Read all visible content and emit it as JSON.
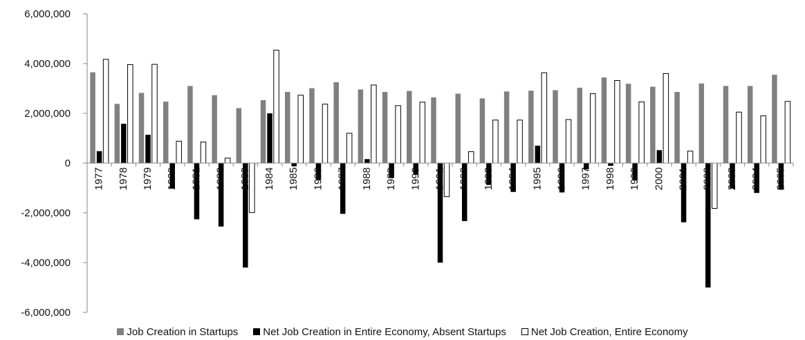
{
  "chart_data": {
    "type": "bar",
    "title": "",
    "xlabel": "",
    "ylabel": "",
    "ylim": [
      -6000000,
      6000000
    ],
    "ytick_step": 2000000,
    "yticks": [
      "-6,000,000",
      "-4,000,000",
      "-2,000,000",
      "0",
      "2,000,000",
      "4,000,000",
      "6,000,000"
    ],
    "grid": false,
    "legend_position": "bottom",
    "categories": [
      "1977",
      "1978",
      "1979",
      "1980",
      "1981",
      "1982",
      "1983",
      "1984",
      "1985",
      "1986",
      "1987",
      "1988",
      "1989",
      "1990",
      "1991",
      "1992",
      "1993",
      "1994",
      "1995",
      "1996",
      "1997",
      "1998",
      "1999",
      "2000",
      "2001",
      "2002",
      "2003",
      "2004",
      "2005"
    ],
    "series": [
      {
        "name": "Job Creation in Startups",
        "color": "#808080",
        "style": "solid",
        "values": [
          3650000,
          2380000,
          2820000,
          2470000,
          3100000,
          2730000,
          2210000,
          2530000,
          2860000,
          3010000,
          3250000,
          2960000,
          2860000,
          2900000,
          2640000,
          2790000,
          2600000,
          2880000,
          2910000,
          2930000,
          3030000,
          3440000,
          3190000,
          3070000,
          2860000,
          3200000,
          3100000,
          3100000,
          3550000
        ]
      },
      {
        "name": "Net Job Creation in Entire Economy, Absent Startups",
        "color": "#000000",
        "style": "solid",
        "values": [
          480000,
          1580000,
          1140000,
          -1030000,
          -2260000,
          -2550000,
          -4200000,
          2000000,
          -130000,
          -680000,
          -2040000,
          160000,
          -600000,
          -470000,
          -4000000,
          -2330000,
          -880000,
          -1160000,
          700000,
          -1180000,
          -250000,
          -110000,
          -700000,
          520000,
          -2380000,
          -5000000,
          -1030000,
          -1200000,
          -1070000
        ]
      },
      {
        "name": "Net Job Creation, Entire Economy",
        "color": "#ffffff",
        "style": "outlined",
        "values": [
          4170000,
          3960000,
          3970000,
          880000,
          850000,
          200000,
          -1990000,
          4540000,
          2730000,
          2370000,
          1200000,
          3140000,
          2310000,
          2450000,
          -1350000,
          460000,
          1730000,
          1730000,
          3630000,
          1750000,
          2790000,
          3320000,
          2460000,
          3600000,
          480000,
          -1820000,
          2050000,
          1900000,
          2480000
        ]
      }
    ]
  }
}
